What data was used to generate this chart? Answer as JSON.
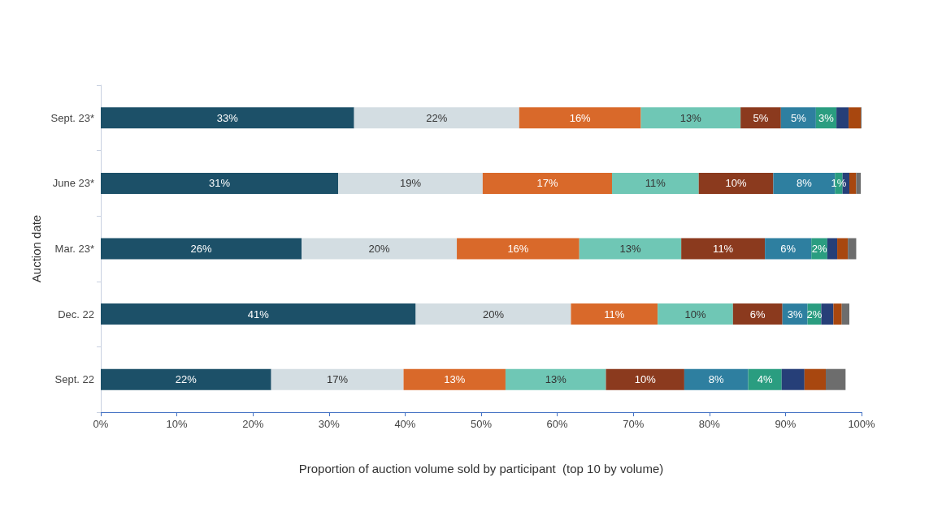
{
  "chart_data": {
    "type": "bar",
    "orientation": "horizontal",
    "stacked": true,
    "xlabel": "Proportion of auction volume sold by participant  (top 10 by volume)",
    "ylabel": "Auction date",
    "categories": [
      "Sept. 23*",
      "June 23*",
      "Mar. 23*",
      "Dec. 22",
      "Sept. 22"
    ],
    "xlim": [
      0,
      100
    ],
    "xticks": [
      {
        "value": 0,
        "label": "0%"
      },
      {
        "value": 10,
        "label": "10%"
      },
      {
        "value": 20,
        "label": "20%"
      },
      {
        "value": 30,
        "label": "30%"
      },
      {
        "value": 40,
        "label": "40%"
      },
      {
        "value": 50,
        "label": "50%"
      },
      {
        "value": 60,
        "label": "60%"
      },
      {
        "value": 70,
        "label": "70%"
      },
      {
        "value": 80,
        "label": "80%"
      },
      {
        "value": 90,
        "label": "90%"
      },
      {
        "value": 100,
        "label": "100%"
      }
    ],
    "grid": false,
    "series": [
      {
        "color": "#1c5068",
        "values": [
          33.3,
          31.2,
          26.4,
          41.4,
          22.4
        ],
        "value_labels": [
          "33%",
          "31%",
          "26%",
          "41%",
          "22%"
        ]
      },
      {
        "color": "#d3dde2",
        "values": [
          21.7,
          19.0,
          20.4,
          20.4,
          17.4
        ],
        "value_labels": [
          "22%",
          "19%",
          "20%",
          "20%",
          "17%"
        ]
      },
      {
        "color": "#d9692a",
        "values": [
          16.0,
          17.0,
          16.1,
          11.4,
          13.4
        ],
        "value_labels": [
          "16%",
          "17%",
          "16%",
          "11%",
          "13%"
        ]
      },
      {
        "color": "#6fc7b5",
        "values": [
          13.1,
          11.4,
          13.4,
          9.9,
          13.2
        ],
        "value_labels": [
          "13%",
          "11%",
          "13%",
          "10%",
          "13%"
        ]
      },
      {
        "color": "#8b3a1e",
        "values": [
          5.3,
          9.8,
          11.0,
          6.5,
          10.3
        ],
        "value_labels": [
          "5%",
          "10%",
          "11%",
          "6%",
          "10%"
        ]
      },
      {
        "color": "#2e7fa0",
        "values": [
          4.6,
          8.1,
          6.1,
          3.3,
          8.4
        ],
        "value_labels": [
          "5%",
          "8%",
          "6%",
          "3%",
          "8%"
        ]
      },
      {
        "color": "#2a9d80",
        "values": [
          2.7,
          1.0,
          2.1,
          1.8,
          4.4
        ],
        "value_labels": [
          "3%",
          "1%",
          "2%",
          "2%",
          "4%"
        ]
      },
      {
        "color": "#263f78",
        "values": [
          1.6,
          0.9,
          1.3,
          1.6,
          3.0
        ]
      },
      {
        "color": "#a8470f",
        "values": [
          1.6,
          0.9,
          1.4,
          1.1,
          2.8
        ]
      },
      {
        "color": "#6d6d6d",
        "values": [
          0.1,
          0.6,
          1.1,
          1.0,
          2.6
        ]
      }
    ]
  }
}
